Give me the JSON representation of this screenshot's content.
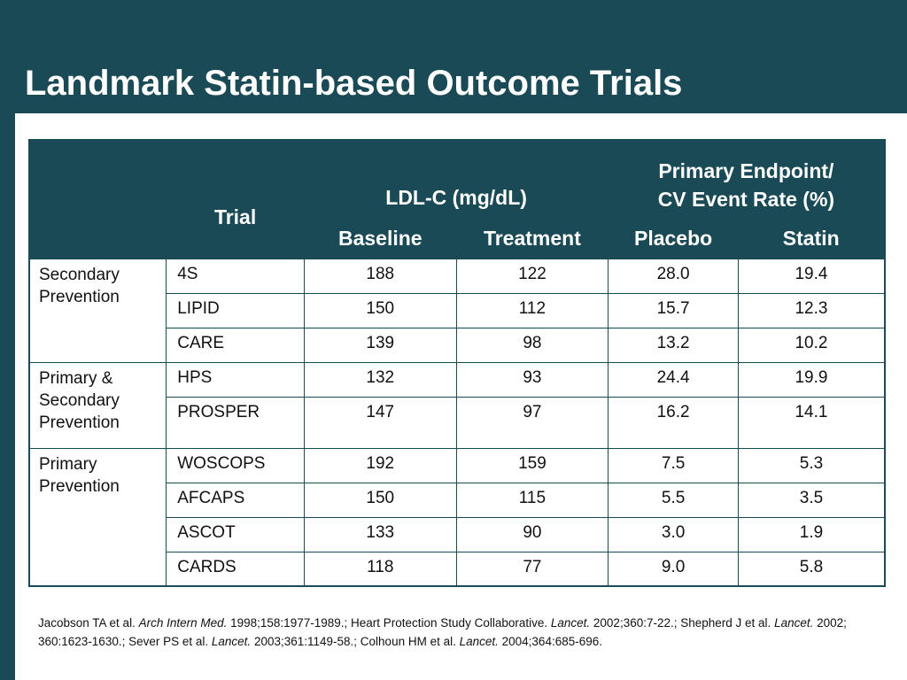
{
  "title": "Landmark Statin-based Outcome Trials",
  "colors": {
    "header_bg": "#1a4a55",
    "header_text": "#ffffff",
    "body_bg": "#ffffff"
  },
  "table": {
    "headers": {
      "trial": "Trial",
      "ldl": "LDL-C (mg/dL)",
      "endpoint_line1": "Primary Endpoint/",
      "endpoint_line2": "CV Event Rate (%)",
      "baseline": "Baseline",
      "treatment": "Treatment",
      "placebo": "Placebo",
      "statin": "Statin"
    },
    "groups": [
      {
        "line1": "Secondary",
        "line2": "Prevention",
        "line3": "",
        "rows": [
          {
            "trial": "4S",
            "baseline": "188",
            "treatment": "122",
            "placebo": "28.0",
            "statin": "19.4"
          },
          {
            "trial": "LIPID",
            "baseline": "150",
            "treatment": "112",
            "placebo": "15.7",
            "statin": "12.3"
          },
          {
            "trial": "CARE",
            "baseline": "139",
            "treatment": "98",
            "placebo": "13.2",
            "statin": "10.2"
          }
        ]
      },
      {
        "line1": "Primary &",
        "line2": "Secondary",
        "line3": "Prevention",
        "rows": [
          {
            "trial": "HPS",
            "baseline": "132",
            "treatment": "93",
            "placebo": "24.4",
            "statin": "19.9"
          },
          {
            "trial": "PROSPER",
            "baseline": "147",
            "treatment": "97",
            "placebo": "16.2",
            "statin": "14.1"
          }
        ]
      },
      {
        "line1": "Primary",
        "line2": "Prevention",
        "line3": "",
        "rows": [
          {
            "trial": "WOSCOPS",
            "baseline": "192",
            "treatment": "159",
            "placebo": "7.5",
            "statin": "5.3"
          },
          {
            "trial": "AFCAPS",
            "baseline": "150",
            "treatment": "115",
            "placebo": "5.5",
            "statin": "3.5"
          },
          {
            "trial": "ASCOT",
            "baseline": "133",
            "treatment": "90",
            "placebo": "3.0",
            "statin": "1.9"
          },
          {
            "trial": "CARDS",
            "baseline": "118",
            "treatment": "77",
            "placebo": "9.0",
            "statin": "5.8"
          }
        ]
      }
    ]
  },
  "references": [
    {
      "text": "Jacobson TA et al. ",
      "italic": false
    },
    {
      "text": "Arch Intern Med.",
      "italic": true
    },
    {
      "text": " 1998;158:1977-1989.; Heart Protection Study Collaborative. ",
      "italic": false
    },
    {
      "text": "Lancet.",
      "italic": true
    },
    {
      "text": " 2002;360:7-22.; Shepherd J et al. ",
      "italic": false
    },
    {
      "text": "Lancet.",
      "italic": true
    },
    {
      "text": " 2002; 360:1623-1630.; Sever PS et al. ",
      "italic": false
    },
    {
      "text": "Lancet.",
      "italic": true
    },
    {
      "text": " 2003;361:1149-58.; Colhoun HM et al. ",
      "italic": false
    },
    {
      "text": "Lancet.",
      "italic": true
    },
    {
      "text": " 2004;364:685-696.",
      "italic": false
    }
  ]
}
